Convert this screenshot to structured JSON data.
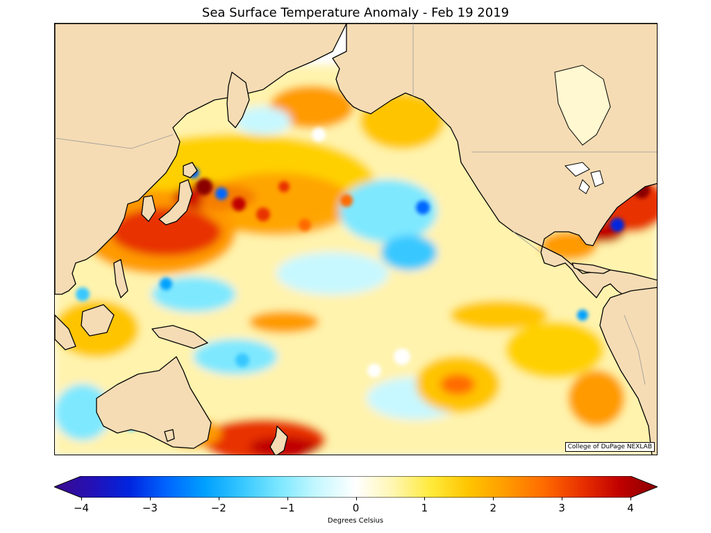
{
  "title": "Sea Surface Temperature Anomaly - Feb 19 2019",
  "credit": "College of DuPage NEXLAB",
  "colorbar": {
    "label": "Degrees Celsius",
    "min": -4,
    "max": 4,
    "ticks": [
      "−4",
      "−3",
      "−2",
      "−1",
      "0",
      "1",
      "2",
      "3",
      "4"
    ],
    "tick_values": [
      -4,
      -3,
      -2,
      -1,
      0,
      1,
      2,
      3,
      4
    ],
    "colors": [
      "#3b0a8c",
      "#2410b5",
      "#0025e0",
      "#0066ff",
      "#00a0ff",
      "#38c8ff",
      "#7ee8ff",
      "#c8f8ff",
      "#ffffff",
      "#fff6b0",
      "#ffea3a",
      "#ffc400",
      "#ff9a00",
      "#ff6a00",
      "#e83000",
      "#c00000",
      "#8a0000"
    ]
  },
  "map": {
    "land_color": "#f5dcb4",
    "ocean_base": "#ffffff",
    "coastline_color": "#000000",
    "border_color": "#999999"
  }
}
